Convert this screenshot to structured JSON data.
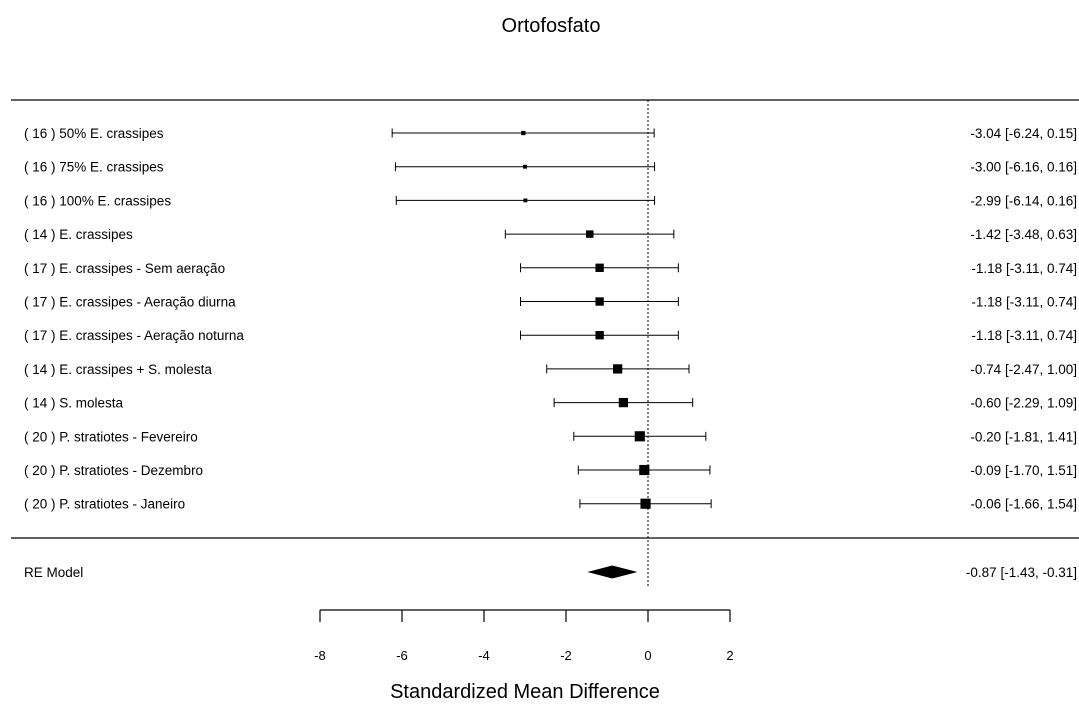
{
  "chart_data": {
    "type": "forest",
    "title": "Ortofosfato",
    "xlabel": "Standardized Mean Difference",
    "xlim": [
      -8,
      2
    ],
    "xticks": [
      -8,
      -6,
      -4,
      -2,
      0,
      2
    ],
    "xtick_labels": [
      "-8",
      "-6",
      "-4",
      "-2",
      "0",
      "2"
    ],
    "reference_line": 0,
    "studies": [
      {
        "label": "( 16 ) 50% E. crassipes",
        "estimate": -3.04,
        "ci_lower": -6.24,
        "ci_upper": 0.15,
        "ci_text": "-3.04 [-6.24,  0.15]",
        "weight": 0.2
      },
      {
        "label": "( 16 ) 75% E. crassipes",
        "estimate": -3.0,
        "ci_lower": -6.16,
        "ci_upper": 0.16,
        "ci_text": "-3.00 [-6.16,  0.16]",
        "weight": 0.15
      },
      {
        "label": "( 16 ) 100% E. crassipes",
        "estimate": -2.99,
        "ci_lower": -6.14,
        "ci_upper": 0.16,
        "ci_text": "-2.99 [-6.14,  0.16]",
        "weight": 0.15
      },
      {
        "label": "( 14 ) E. crassipes",
        "estimate": -1.42,
        "ci_lower": -3.48,
        "ci_upper": 0.63,
        "ci_text": "-1.42 [-3.48,  0.63]",
        "weight": 0.55
      },
      {
        "label": "( 17 ) E. crassipes - Sem aeração",
        "estimate": -1.18,
        "ci_lower": -3.11,
        "ci_upper": 0.74,
        "ci_text": "-1.18 [-3.11,  0.74]",
        "weight": 0.65
      },
      {
        "label": "( 17 ) E. crassipes - Aeração diurna",
        "estimate": -1.18,
        "ci_lower": -3.11,
        "ci_upper": 0.74,
        "ci_text": "-1.18 [-3.11,  0.74]",
        "weight": 0.65
      },
      {
        "label": "( 17 ) E. crassipes - Aeração noturna",
        "estimate": -1.18,
        "ci_lower": -3.11,
        "ci_upper": 0.74,
        "ci_text": "-1.18 [-3.11,  0.74]",
        "weight": 0.65
      },
      {
        "label": "( 14 ) E. crassipes + S. molesta",
        "estimate": -0.74,
        "ci_lower": -2.47,
        "ci_upper": 1.0,
        "ci_text": "-0.74 [-2.47,  1.00]",
        "weight": 0.75
      },
      {
        "label": "( 14 ) S. molesta",
        "estimate": -0.6,
        "ci_lower": -2.29,
        "ci_upper": 1.09,
        "ci_text": "-0.60 [-2.29,  1.09]",
        "weight": 0.75
      },
      {
        "label": "( 20 ) P. stratiotes - Fevereiro",
        "estimate": -0.2,
        "ci_lower": -1.81,
        "ci_upper": 1.41,
        "ci_text": "-0.20 [-1.81,  1.41]",
        "weight": 0.85
      },
      {
        "label": "( 20 ) P. stratiotes - Dezembro",
        "estimate": -0.09,
        "ci_lower": -1.7,
        "ci_upper": 1.51,
        "ci_text": "-0.09 [-1.70,  1.51]",
        "weight": 0.85
      },
      {
        "label": "( 20 ) P. stratiotes - Janeiro",
        "estimate": -0.06,
        "ci_lower": -1.66,
        "ci_upper": 1.54,
        "ci_text": "-0.06 [-1.66,  1.54]",
        "weight": 0.85
      }
    ],
    "summary": {
      "label": "RE Model",
      "estimate": -0.87,
      "ci_lower": -1.43,
      "ci_upper": -0.31,
      "ci_text": "-0.87 [-1.43, -0.31]"
    }
  }
}
